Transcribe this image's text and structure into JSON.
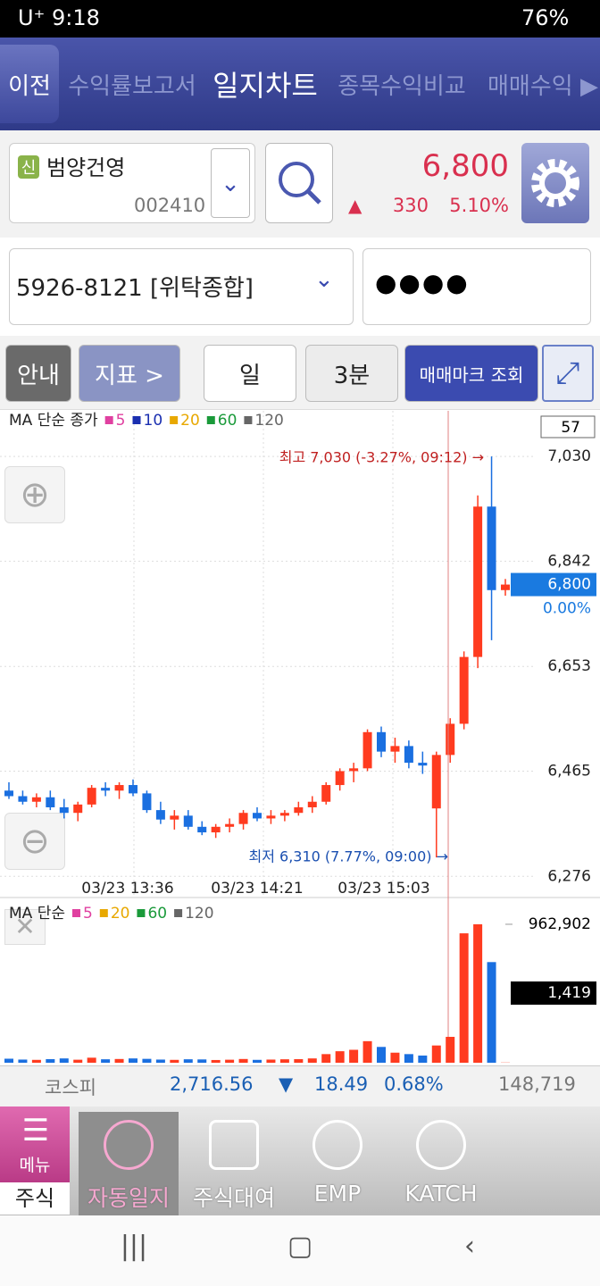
{
  "status_bar": {
    "carrier": "U⁺",
    "time": "9:18",
    "battery": "76%"
  },
  "tabs": [
    "이전",
    "수익률보고서",
    "일지차트",
    "종목수익비교",
    "매매수익 ▶"
  ],
  "stock": {
    "badge": "신",
    "name": "범양건영",
    "code": "002410",
    "price": "6,800",
    "change_arrow": "▲",
    "change": "330",
    "change_pct": "5.10%"
  },
  "account": {
    "number": "5926-8121 [위탁종합]",
    "password": "●●●●"
  },
  "toolbar": [
    "안내",
    "지표 >",
    "일",
    "3분",
    "매매마크 조회"
  ],
  "chart_data": [
    {
      "type": "candlestick",
      "legend": [
        {
          "name": "MA 단순 종가",
          "color": null
        },
        {
          "name": "5",
          "color": "#e040a0"
        },
        {
          "name": "10",
          "color": "#1a2fb0"
        },
        {
          "name": "20",
          "color": "#e8a800"
        },
        {
          "name": "60",
          "color": "#1a9a3a"
        },
        {
          "name": "120",
          "color": "#666666"
        }
      ],
      "open": [
        6430,
        6420,
        6410,
        6418,
        6400,
        6390,
        6405,
        6435,
        6430,
        6440,
        6425,
        6395,
        6378,
        6385,
        6365,
        6355,
        6365,
        6370,
        6390,
        6380,
        6385,
        6390,
        6400,
        6410,
        6440,
        6465,
        6470,
        6535,
        6500,
        6510,
        6480,
        6398,
        6494,
        6550,
        6670,
        6940,
        6790
      ],
      "high": [
        6445,
        6430,
        6425,
        6430,
        6415,
        6410,
        6440,
        6445,
        6445,
        6450,
        6430,
        6410,
        6395,
        6395,
        6375,
        6370,
        6380,
        6395,
        6400,
        6395,
        6395,
        6410,
        6420,
        6445,
        6470,
        6480,
        6540,
        6545,
        6525,
        6520,
        6500,
        6500,
        6560,
        6680,
        6960,
        7030,
        6810
      ],
      "low": [
        6415,
        6405,
        6400,
        6395,
        6380,
        6375,
        6400,
        6420,
        6415,
        6420,
        6390,
        6370,
        6360,
        6360,
        6350,
        6345,
        6355,
        6360,
        6375,
        6370,
        6375,
        6385,
        6390,
        6405,
        6430,
        6445,
        6465,
        6490,
        6480,
        6470,
        6460,
        6310,
        6480,
        6540,
        6650,
        6700,
        6780
      ],
      "close": [
        6420,
        6410,
        6418,
        6400,
        6390,
        6405,
        6435,
        6430,
        6440,
        6425,
        6395,
        6378,
        6385,
        6365,
        6355,
        6365,
        6370,
        6390,
        6380,
        6385,
        6390,
        6400,
        6410,
        6440,
        6465,
        6470,
        6535,
        6500,
        6510,
        6480,
        6475,
        6494,
        6550,
        6670,
        6940,
        6790,
        6800
      ],
      "up_color": "#ff3b1f",
      "down_color": "#1a6fe0",
      "ylim": [
        6238,
        7112
      ],
      "yticks": [
        {
          "value": 6276,
          "label": "6,276"
        },
        {
          "value": 6465,
          "label": "6,465"
        },
        {
          "value": 6653,
          "label": "6,653"
        },
        {
          "value": 6842,
          "label": "6,842"
        },
        {
          "value": 7030,
          "label": "7,030"
        }
      ],
      "x_labels": [
        "03/23 13:36",
        "03/23 14:21",
        "03/23 15:03"
      ],
      "high_label": "최고 7,030 (-3.27%, 09:12) →",
      "low_label": "최저 6,310 (7.77%, 09:00) →",
      "count_box": "57",
      "current_price": {
        "value": 6800,
        "label": "6,800"
      },
      "current_pct": "0.00%"
    },
    {
      "type": "bar",
      "legend": [
        {
          "name": "MA 단순",
          "color": null
        },
        {
          "name": "5",
          "color": "#e040a0"
        },
        {
          "name": "20",
          "color": "#e8a800"
        },
        {
          "name": "60",
          "color": "#1a9a3a"
        },
        {
          "name": "120",
          "color": "#666666"
        }
      ],
      "values": [
        28000,
        22000,
        20000,
        25000,
        30000,
        21000,
        35000,
        24000,
        26000,
        30000,
        27000,
        22000,
        20000,
        24000,
        23000,
        19000,
        21000,
        26000,
        20000,
        22000,
        24000,
        25000,
        30000,
        60000,
        80000,
        90000,
        150000,
        110000,
        70000,
        60000,
        50000,
        120000,
        180000,
        900000,
        962902,
        700000,
        1419
      ],
      "ylim": [
        0,
        1118000
      ],
      "yticks": [
        {
          "value": 962902,
          "label": "962,902"
        }
      ],
      "current_volume": {
        "value": 1419,
        "label": "1,419"
      }
    }
  ],
  "market_bar": {
    "index": "코스피",
    "value": "2,716.56",
    "arrow": "▼",
    "change": "18.49",
    "pct": "0.68%",
    "volume": "148,719"
  },
  "bottom_nav": {
    "menu": "메뉴",
    "menu_sub": "주식",
    "items": [
      "자동일지",
      "주식대여",
      "EMP",
      "KATCH"
    ]
  }
}
